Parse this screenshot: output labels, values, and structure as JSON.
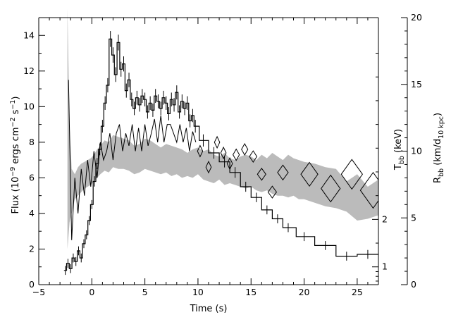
{
  "chart_data": {
    "type": "line",
    "xlabel": "Time (s)",
    "ylabel": "Flux (10^-9 ergs cm^-2 s^-1)",
    "y2label": "T_bb (keV)",
    "y3label": "R_bb (km/d_10 kpc)",
    "xlim": [
      -5,
      27
    ],
    "ylim": [
      0,
      15
    ],
    "x_ticks": [
      -5,
      0,
      5,
      10,
      15,
      20,
      25
    ],
    "y_ticks": [
      0,
      2,
      4,
      6,
      8,
      10,
      12,
      14
    ],
    "tbb_ticks": [
      1,
      2
    ],
    "rbb_ticks": [
      0,
      5,
      10,
      15,
      20
    ],
    "rbb_lim": [
      0,
      20
    ],
    "series": [
      {
        "style": "stepped histogram with error bars",
        "x": [
          -2.5,
          -2.25,
          -2.0,
          -1.75,
          -1.5,
          -1.25,
          -1.0,
          -0.75,
          -0.5,
          -0.25,
          0.0,
          0.25,
          0.5,
          0.75,
          1.0,
          1.25,
          1.5,
          1.75,
          2.0,
          2.25,
          2.5,
          2.75,
          3.0,
          3.25,
          3.5,
          3.75,
          4.0,
          4.25,
          4.5,
          4.75,
          5.0,
          5.25,
          5.5,
          5.75,
          6.0,
          6.25,
          6.5,
          6.75,
          7.0,
          7.25,
          7.5,
          7.75,
          8.0,
          8.25,
          8.5,
          8.75,
          9.0,
          9.25,
          9.5,
          9.75,
          10.5,
          11.5,
          12.5,
          13.5,
          14.5,
          15.5,
          16.5,
          17.5,
          18.5,
          20.0,
          22.0,
          24.0,
          26.0
        ],
        "values": [
          0.8,
          1.2,
          0.9,
          1.5,
          1.3,
          1.9,
          1.5,
          2.3,
          2.8,
          3.6,
          4.5,
          5.8,
          6.8,
          7.6,
          8.9,
          10.2,
          11.2,
          13.8,
          12.9,
          11.8,
          13.6,
          12.1,
          12.4,
          10.9,
          11.5,
          10.4,
          9.9,
          10.5,
          10.1,
          10.6,
          10.4,
          9.7,
          10.2,
          9.8,
          10.6,
          10.3,
          9.9,
          10.5,
          10.2,
          9.6,
          10.4,
          10.1,
          10.8,
          9.7,
          10.3,
          9.9,
          10.2,
          9.2,
          9.5,
          8.9,
          8.1,
          7.4,
          6.9,
          6.3,
          5.5,
          4.9,
          4.2,
          3.7,
          3.2,
          2.7,
          2.2,
          1.6,
          1.7
        ],
        "color": "#000000"
      },
      {
        "style": "shaded uncertainty band (T_bb)",
        "x": [
          -2.3,
          -2.1,
          -1.9,
          -1.6,
          -1.3,
          -1.0,
          -0.7,
          -0.4,
          -0.1,
          0.2,
          0.5,
          0.8,
          1.2,
          1.6,
          2.0,
          2.5,
          3.0,
          3.5,
          4.0,
          4.5,
          5.0,
          5.5,
          6.0,
          6.5,
          7.0,
          7.5,
          8.0,
          8.5,
          9.0,
          9.5,
          10.0,
          10.5,
          11.0,
          11.5,
          12.0,
          12.5,
          13.0,
          13.5,
          14.0,
          14.5,
          15.0,
          15.5,
          16.0,
          16.5,
          17.0,
          17.5,
          18.0,
          18.5,
          19.0,
          19.5,
          20.0,
          21.0,
          22.0,
          23.0,
          24.0,
          25.0,
          26.0,
          27.0
        ],
        "upper": [
          15.5,
          9.0,
          6.5,
          6.2,
          6.6,
          6.8,
          6.9,
          7.0,
          7.1,
          7.3,
          7.6,
          7.8,
          8.1,
          8.0,
          8.4,
          8.3,
          8.2,
          8.1,
          7.8,
          7.9,
          8.2,
          8.1,
          7.9,
          7.7,
          7.9,
          7.8,
          7.7,
          7.6,
          7.4,
          7.6,
          7.7,
          7.5,
          7.6,
          7.3,
          7.2,
          7.4,
          7.1,
          7.0,
          7.2,
          7.3,
          7.2,
          7.0,
          7.3,
          7.1,
          7.4,
          7.2,
          7.0,
          7.3,
          7.1,
          7.0,
          6.9,
          6.8,
          6.6,
          6.5,
          5.8,
          6.2,
          5.5,
          5.9
        ],
        "lower": [
          2.0,
          3.5,
          4.0,
          4.8,
          5.0,
          5.2,
          5.4,
          5.5,
          5.6,
          5.8,
          6.0,
          6.2,
          6.4,
          6.3,
          6.6,
          6.5,
          6.5,
          6.4,
          6.2,
          6.3,
          6.5,
          6.4,
          6.3,
          6.2,
          6.3,
          6.1,
          6.2,
          6.0,
          6.1,
          6.0,
          6.2,
          5.9,
          5.8,
          5.7,
          5.9,
          5.6,
          5.7,
          5.6,
          5.5,
          5.4,
          5.5,
          5.3,
          5.2,
          5.3,
          5.1,
          5.0,
          5.0,
          4.9,
          5.0,
          4.8,
          4.8,
          4.6,
          4.4,
          4.3,
          4.1,
          3.6,
          3.7,
          3.9
        ],
        "color": "#bbbbbb"
      },
      {
        "style": "jagged line (early R_bb)",
        "x": [
          -2.2,
          -1.9,
          -1.6,
          -1.3,
          -1.0,
          -0.7,
          -0.4,
          -0.1,
          0.2,
          0.5,
          0.8,
          1.1,
          1.4,
          1.7,
          2.0,
          2.3,
          2.6,
          2.9,
          3.2,
          3.5,
          3.8,
          4.1,
          4.4,
          4.7,
          5.0,
          5.3,
          5.6,
          5.9,
          6.2,
          6.5,
          6.8,
          7.1,
          7.4,
          7.7,
          8.0,
          8.3,
          8.6,
          8.9,
          9.2,
          9.5,
          9.8
        ],
        "values": [
          11.5,
          2.5,
          6.0,
          4.0,
          6.5,
          5.0,
          7.0,
          5.5,
          7.5,
          6.0,
          8.0,
          7.0,
          7.5,
          8.5,
          7.0,
          8.5,
          9.0,
          7.5,
          8.5,
          7.8,
          9.0,
          7.5,
          8.8,
          7.5,
          9.0,
          7.8,
          8.5,
          9.3,
          8.0,
          9.5,
          8.0,
          9.0,
          9.0,
          8.5,
          8.0,
          9.0,
          8.0,
          8.8,
          7.5,
          8.6,
          8.0
        ],
        "color": "#000000"
      },
      {
        "style": "diamonds (R_bb)",
        "x": [
          10.2,
          11.0,
          11.8,
          12.4,
          13.0,
          13.6,
          14.4,
          15.2,
          16.0,
          17.0,
          18.0,
          20.5,
          22.5,
          24.5,
          26.5
        ],
        "values": [
          7.5,
          6.6,
          8.0,
          7.4,
          6.8,
          7.3,
          7.6,
          7.2,
          6.2,
          5.2,
          6.3,
          6.2,
          5.4,
          6.2,
          5.3
        ],
        "size": [
          0.25,
          0.25,
          0.25,
          0.25,
          0.25,
          0.3,
          0.3,
          0.35,
          0.4,
          0.4,
          0.5,
          0.8,
          0.9,
          1.0,
          1.2
        ],
        "color": "#000000"
      }
    ]
  }
}
